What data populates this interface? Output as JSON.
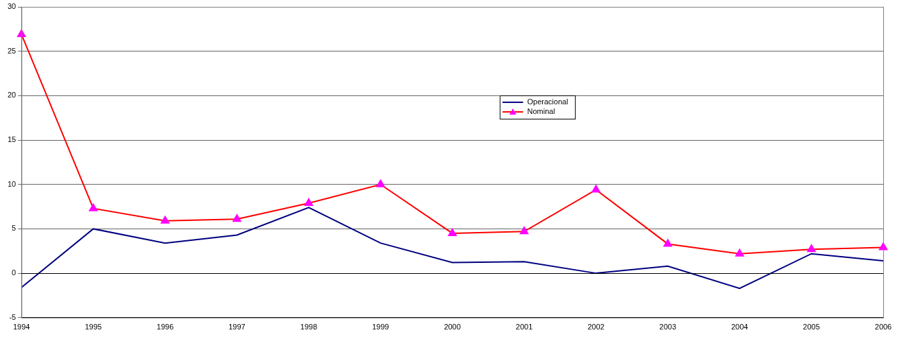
{
  "chart_data": {
    "type": "line",
    "categories": [
      "1994",
      "1995",
      "1996",
      "1997",
      "1998",
      "1999",
      "2000",
      "2001",
      "2002",
      "2003",
      "2004",
      "2005",
      "2006"
    ],
    "series": [
      {
        "name": "Operacional",
        "color": "#000080",
        "marker": "none",
        "line_style": "solid",
        "values": [
          -1.6,
          5.0,
          3.4,
          4.3,
          7.4,
          3.4,
          1.2,
          1.3,
          0.0,
          0.8,
          -1.7,
          2.2,
          1.4
        ]
      },
      {
        "name": "Nominal",
        "color": "#ff0000",
        "marker": "triangle",
        "line_style": "solid",
        "values": [
          26.9,
          7.3,
          5.9,
          6.1,
          7.9,
          10.0,
          4.5,
          4.7,
          9.4,
          3.3,
          2.2,
          2.7,
          2.9
        ]
      }
    ],
    "ylim": [
      -5,
      30
    ],
    "yticks": [
      -5,
      0,
      5,
      10,
      15,
      20,
      25,
      30
    ],
    "grid": true,
    "legend": "center"
  }
}
